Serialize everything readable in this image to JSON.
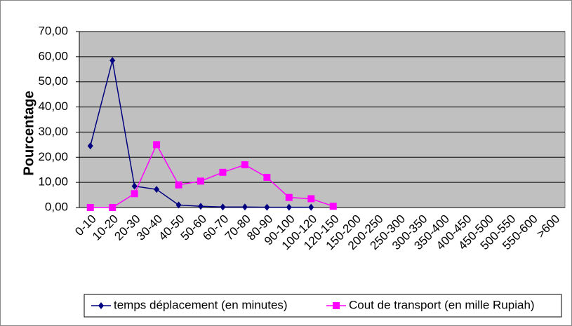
{
  "chart_data": {
    "type": "line",
    "y_label": "Pourcentage",
    "categories": [
      "0-10",
      "10-20",
      "20-30",
      "30-40",
      "40-50",
      "50-60",
      "60-70",
      "70-80",
      "80-90",
      "90-100",
      "100-120",
      "120-150",
      "150-200",
      "200-250",
      "250-300",
      "300-350",
      "350-400",
      "400-450",
      "450-500",
      "500-550",
      "550-600",
      ">600"
    ],
    "series": [
      {
        "name": "temps déplacement (en minutes)",
        "color": "#000080",
        "marker": "diamond",
        "values": [
          24.5,
          58.5,
          8.5,
          7.2,
          1,
          0.5,
          0.2,
          0.2,
          0.1,
          0.1,
          0.1,
          null,
          null,
          null,
          null,
          null,
          null,
          null,
          null,
          null,
          null,
          null
        ]
      },
      {
        "name": "Cout de transport (en mille Rupiah)",
        "color": "#ff00ff",
        "marker": "square",
        "values": [
          0,
          0,
          5.5,
          25,
          9,
          10.5,
          14,
          17,
          12,
          4,
          3.5,
          0.5,
          null,
          null,
          null,
          null,
          null,
          null,
          null,
          null,
          null,
          null
        ]
      }
    ],
    "ylim": [
      0,
      70
    ],
    "yticks": [
      {
        "value": 0,
        "label": "0,00"
      },
      {
        "value": 10,
        "label": "10,00"
      },
      {
        "value": 20,
        "label": "20,00"
      },
      {
        "value": 30,
        "label": "30,00"
      },
      {
        "value": 40,
        "label": "40,00"
      },
      {
        "value": 50,
        "label": "50,00"
      },
      {
        "value": 60,
        "label": "60,00"
      },
      {
        "value": 70,
        "label": "70,00"
      }
    ],
    "grid": true,
    "plot_background": "#c0c0c0",
    "legend": "bottom"
  }
}
